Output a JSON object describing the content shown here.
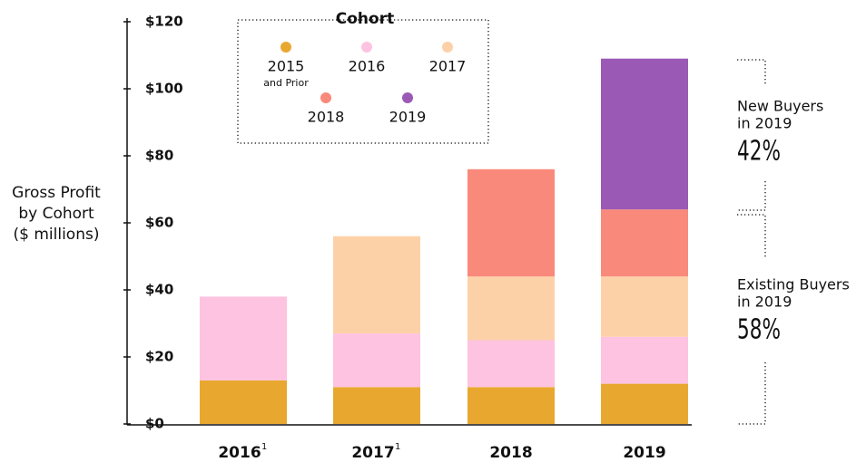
{
  "chart_data": {
    "type": "stacked_bar",
    "y_label_lines": [
      "Gross Profit",
      "by Cohort",
      "($ millions)"
    ],
    "categories": [
      "2016",
      "2017",
      "2018",
      "2019"
    ],
    "category_notes": [
      "1",
      "1",
      null,
      null
    ],
    "legend_title": "Cohort",
    "series": [
      {
        "name": "2015",
        "subname": "and Prior",
        "color": "#E8A830",
        "values": [
          13,
          11,
          11,
          12
        ]
      },
      {
        "name": "2016",
        "color": "#FDC3E0",
        "values": [
          25,
          16,
          14,
          14
        ]
      },
      {
        "name": "2017",
        "color": "#FDD1A8",
        "values": [
          0,
          29,
          19,
          18
        ]
      },
      {
        "name": "2018",
        "color": "#F9897A",
        "values": [
          0,
          0,
          32,
          20
        ]
      },
      {
        "name": "2019",
        "color": "#9B59B6",
        "values": [
          0,
          0,
          0,
          45
        ]
      }
    ],
    "ylim": [
      0,
      120
    ],
    "yticks": [
      {
        "value": 0,
        "label": "$0"
      },
      {
        "value": 20,
        "label": "$20"
      },
      {
        "value": 40,
        "label": "$40"
      },
      {
        "value": 60,
        "label": "$60"
      },
      {
        "value": 80,
        "label": "$80"
      },
      {
        "value": 100,
        "label": "$100"
      },
      {
        "value": 120,
        "label": "$120"
      }
    ],
    "annotations": [
      {
        "lines": [
          "New Buyers",
          "in 2019"
        ],
        "value": 42,
        "value_label": "42%"
      },
      {
        "lines": [
          "Existing Buyers",
          "in 2019"
        ],
        "value": 58,
        "value_label": "58%"
      }
    ]
  }
}
